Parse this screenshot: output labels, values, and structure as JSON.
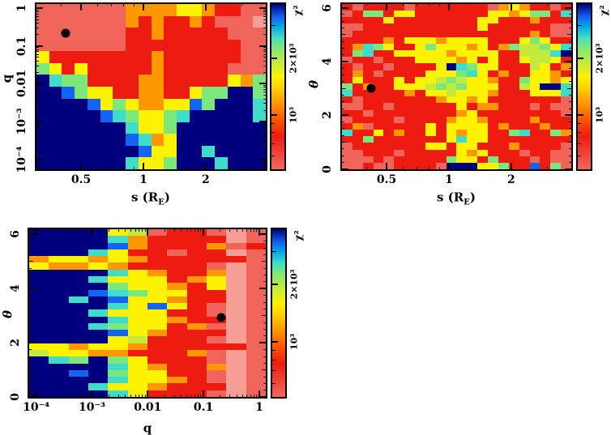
{
  "labels": {
    "chi2": "χ²",
    "xlabel_sRE": {
      "pre": "s (R",
      "sub": "E",
      "post": ")"
    },
    "xlabel_q": "q",
    "ylabel_q": "q",
    "ylabel_theta": "θ"
  },
  "palette": {
    "d": "#00007f",
    "b": "#1464f4",
    "c": "#3fdcca",
    "g": "#7ce87c",
    "G": "#c3ea3c",
    "y": "#fdf200",
    "o": "#ff9800",
    "r": "#ee1c10",
    "s": "#f0645a",
    "p": "#f79e97"
  },
  "colorbar_gradient": [
    [
      0,
      "#f2685c"
    ],
    [
      0.2,
      "#ee1c10"
    ],
    [
      0.3,
      "#ff5500"
    ],
    [
      0.4,
      "#ff9800"
    ],
    [
      0.5,
      "#ffd400"
    ],
    [
      0.56,
      "#fdf200"
    ],
    [
      0.66,
      "#b9ea46"
    ],
    [
      0.74,
      "#7ce87c"
    ],
    [
      0.8,
      "#3fdcca"
    ],
    [
      0.87,
      "#00a2e8"
    ],
    [
      0.92,
      "#1464f4"
    ],
    [
      1,
      "#00007f"
    ]
  ],
  "chart_data": [
    {
      "type": "heatmap",
      "id": "top-left",
      "xlabel": "s (R_E)",
      "ylabel": "q",
      "x_axis": {
        "scale": "log",
        "min": 0.299,
        "max": 3.97,
        "ticks": [
          {
            "v": 0.5,
            "label": "0.5"
          },
          {
            "v": 1,
            "label": "1"
          },
          {
            "v": 2,
            "label": "2"
          }
        ]
      },
      "y_axis": {
        "scale": "log",
        "min": 5e-05,
        "max": 1.41,
        "ticks": [
          {
            "v": 1,
            "label": "1"
          },
          {
            "v": 0.1,
            "label": "0.1"
          },
          {
            "v": 0.01,
            "label": "0.01"
          },
          {
            "v": 0.001,
            "label": "10⁻³"
          },
          {
            "v": 0.0001,
            "label": "10⁻⁴"
          }
        ]
      },
      "best_fit": {
        "x": 0.42,
        "y": 0.22
      },
      "grid_rows": [
        "sssssssooooyyorrss",
        "sssssssororrorsssp",
        "sssssssrrorrrrrsss",
        "sssssssrrrrrrrrrss",
        "yrrrrrrrrorrrrrrss",
        "gyryrrrrrorrrrrsss",
        "dcggrrrroorrrrryog",
        "ddbgyyrroorryggddg",
        "ddddbygyooyybgdddc",
        "dddddbcgyygcdddddc",
        "dddddddcyygddddddd",
        "dddddddbcoyddddddd",
        "ddddddddbyyddcdddd",
        "dddddddcyygdddcddd"
      ],
      "colorbar": {
        "scale": "log",
        "min": 500,
        "max": 4000,
        "title": "χ²",
        "ticks": [
          {
            "v": 1000,
            "label": "10³"
          },
          {
            "v": 2000,
            "label": "2×10³"
          }
        ]
      }
    },
    {
      "type": "heatmap",
      "id": "top-right",
      "xlabel": "s (R_E)",
      "ylabel": "θ",
      "x_axis": {
        "scale": "log",
        "min": 0.299,
        "max": 3.97,
        "ticks": [
          {
            "v": 0.5,
            "label": "0.5"
          },
          {
            "v": 1,
            "label": "1"
          },
          {
            "v": 2,
            "label": "2"
          }
        ]
      },
      "y_axis": {
        "scale": "linear",
        "min": -0.07,
        "max": 6.2,
        "ticks": [
          {
            "v": 0,
            "label": "0"
          },
          {
            "v": 2,
            "label": "2"
          },
          {
            "v": 4,
            "label": "4"
          },
          {
            "v": 6,
            "label": "6"
          }
        ]
      },
      "best_fit": {
        "x": 0.42,
        "y": 3.0
      },
      "grid_rows": [
        "rsrrrrsrrrrrrrsoyorrsr",
        "srggryyrrrrrrryyoyggrc",
        "rrrryrrrrrrrryyrrrorrr",
        "ssrrrrrrrrrrryrrrrrrss",
        "srrrrrrrrrrrrrrrrrorss",
        "rrrroryyyoyyyyrrrygyrr",
        "rocgyrrygyyyoyrogGGgyc",
        "rgcrryyyyyoyyyyrrGGGcd",
        "srrsrrryyyyoyryrryGGyr",
        "rsrrsrrrrydcgyyrrrGyro",
        "rorsrrrryyygcyrorryyor",
        "ryrrryryyGgGyyorrgyyoy",
        "grorryyyGgGgyyyrrGyddc",
        "crrrrroryyGyyyorrryyyc",
        "rsrrrrrrroyyoyrrrrrrrs",
        "ssrrsrrrrrryroorrrsrss",
        "rrsrrrrrrrroyrrrrrrrrs",
        "srrrrsrrrroyyorrrrorrr",
        "rosrrrrryryyyyrorrrorr",
        "crryrorryryoyyrrgcrrgo",
        "rrgrrrrrrrycyyrrrrrrrr",
        "srrrrrrryyryyrrrorrrrs",
        "ssrrrsrrrrryoyrrrsrrss",
        "sssrsrrrrrgyyrgrrrsrss",
        "ssrssrrrrsdddyygrrbrgs"
      ],
      "colorbar": {
        "scale": "log",
        "min": 500,
        "max": 4000,
        "title": "χ²",
        "ticks": [
          {
            "v": 1000,
            "label": "10³"
          },
          {
            "v": 2000,
            "label": "2×10³"
          }
        ]
      }
    },
    {
      "type": "heatmap",
      "id": "bottom-left",
      "xlabel": "q",
      "ylabel": "θ",
      "x_axis": {
        "scale": "log",
        "min": 7e-05,
        "max": 1.4,
        "ticks": [
          {
            "v": 0.0001,
            "label": "10⁻⁴"
          },
          {
            "v": 0.001,
            "label": "10⁻³"
          },
          {
            "v": 0.01,
            "label": "0.01"
          },
          {
            "v": 0.1,
            "label": "0.1"
          },
          {
            "v": 1,
            "label": "1"
          }
        ]
      },
      "y_axis": {
        "scale": "linear",
        "min": -0.05,
        "max": 6.25,
        "ticks": [
          {
            "v": 0,
            "label": "0"
          },
          {
            "v": 2,
            "label": "2"
          },
          {
            "v": 4,
            "label": "4"
          },
          {
            "v": 6,
            "label": "6"
          }
        ]
      },
      "best_fit": {
        "x": 0.21,
        "y": 2.93
      },
      "grid_rows": [
        "ddddyGsrrsps",
        "ddddcorrrrps",
        "ddddborrrosr",
        "dddcyrrsrrps",
        "oyyoyorrrrrs",
        "yooyorrrrsps",
        "ddddcyorrops",
        "dddcyyyroyps",
        "ddddgyyoryps",
        "dddbcgyyrrps",
        "ddcdbyyorrps",
        "ddddcybyrsps",
        "dddcyyyrrsps",
        "ddddcyyorrps",
        "dddcgyyrosps",
        "ddddbyorrrps",
        "ddddyGrrrsps",
        "yyoyyorrrrrs",
        "Gyyoorrrosps",
        "dcgdgyrrrsps",
        "ddddcyorrops",
        "ddbdgyyrrsps",
        "ddddcyyorsps",
        "dddcyyorrrps",
        "ddddcyrrrsps"
      ],
      "colorbar": {
        "scale": "log",
        "min": 500,
        "max": 4000,
        "title": "χ²",
        "ticks": [
          {
            "v": 1000,
            "label": "10³"
          },
          {
            "v": 2000,
            "label": "2×10³"
          }
        ]
      }
    }
  ]
}
